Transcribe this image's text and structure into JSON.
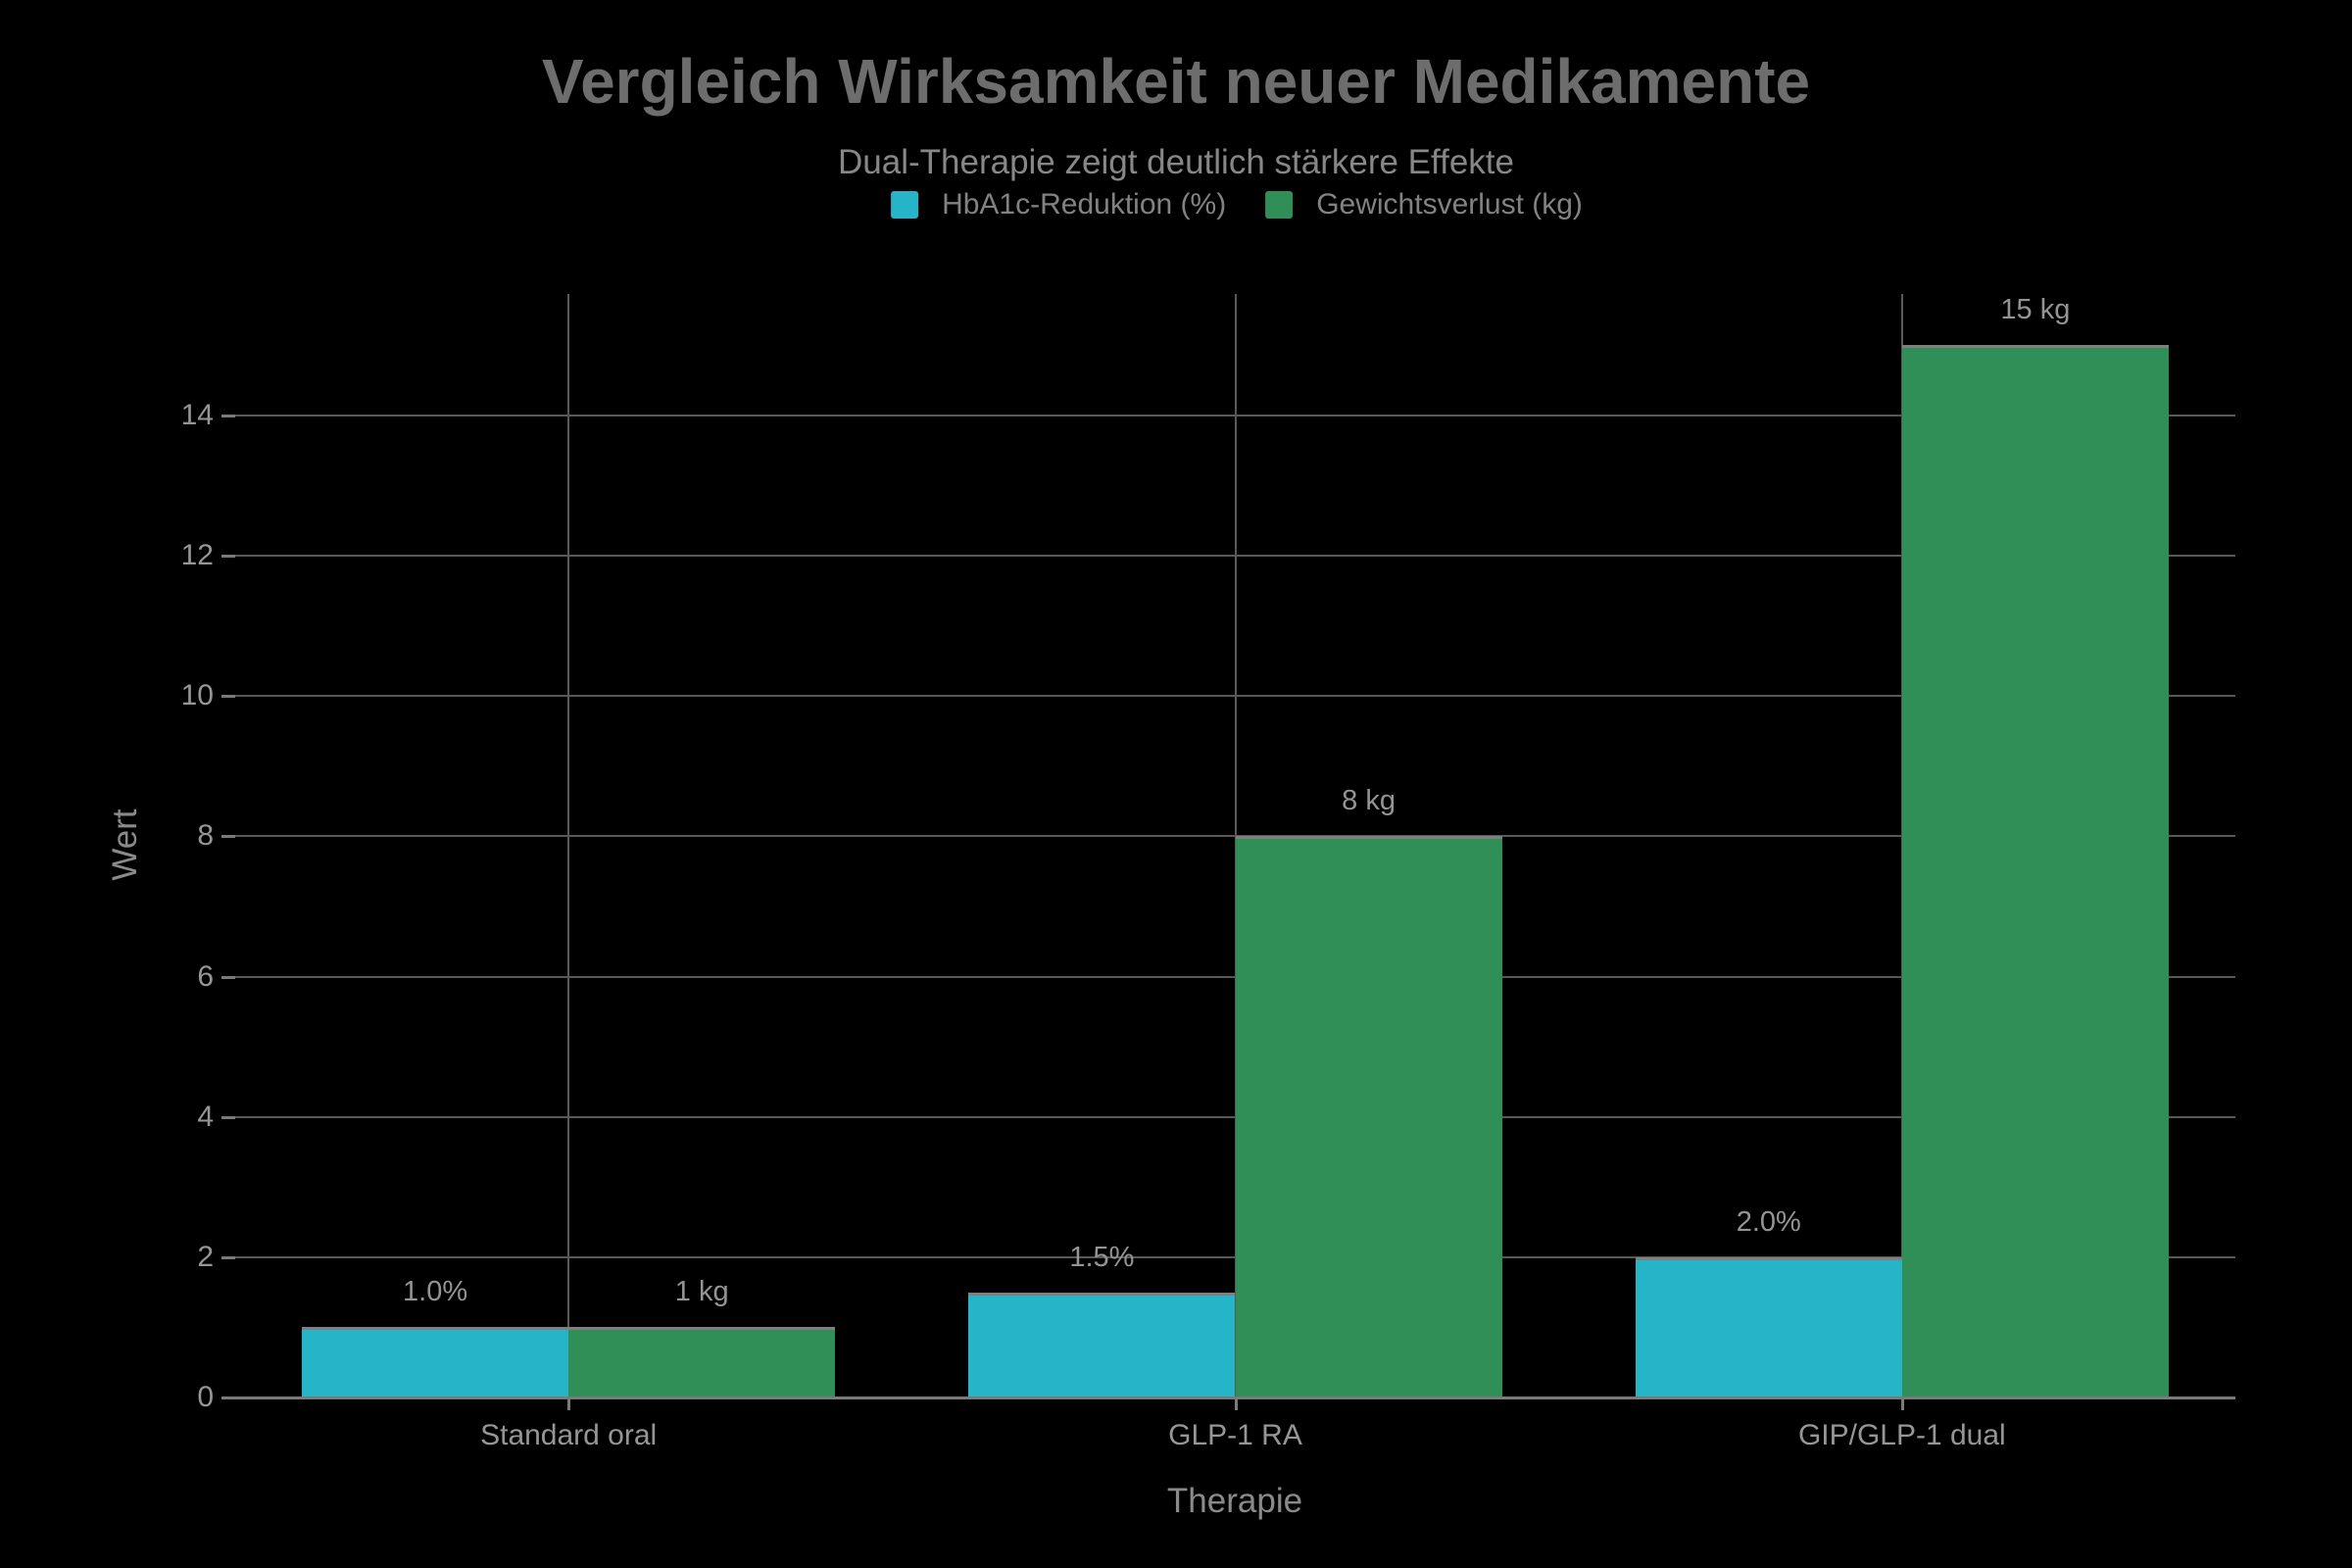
{
  "chart_data": {
    "type": "bar",
    "title": "Vergleich Wirksamkeit neuer Medikamente",
    "subtitle": "Dual-Therapie zeigt deutlich stärkere Effekte",
    "categories": [
      "Standard oral",
      "GLP-1 RA",
      "GIP/GLP-1 dual"
    ],
    "series": [
      {
        "name": "HbA1c-Reduktion (%)",
        "color": "#25b4c8",
        "values": [
          1.0,
          1.5,
          2.0
        ],
        "value_labels": [
          "1.0%",
          "1.5%",
          "2.0%"
        ]
      },
      {
        "name": "Gewichtsverlust (kg)",
        "color": "#2f8f57",
        "values": [
          1,
          8,
          15
        ],
        "value_labels": [
          "1 kg",
          "8 kg",
          "15 kg"
        ]
      }
    ],
    "xlabel": "Therapie",
    "ylabel": "Wert",
    "y_ticks": [
      0,
      2,
      4,
      6,
      8,
      10,
      12,
      14
    ],
    "ylim": [
      0,
      15.73
    ],
    "grid": true,
    "legend_position": "top",
    "background_color": "#000000",
    "gridline_color": "#585858",
    "axis_color": "#7a7a7a",
    "text_color": "#969696"
  }
}
